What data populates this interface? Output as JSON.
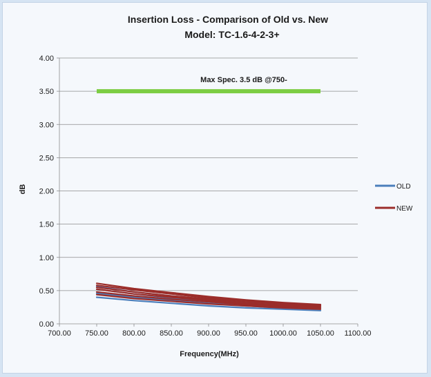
{
  "chart_data": {
    "type": "line",
    "title": "Insertion Loss - Comparison of Old vs. New",
    "subtitle": "Model:  TC-1.6-4-2-3+",
    "xlabel": "Frequency(MHz)",
    "ylabel": "dB",
    "xlim": [
      700,
      1100
    ],
    "ylim": [
      0,
      4
    ],
    "x_ticks": [
      "700.00",
      "750.00",
      "800.00",
      "850.00",
      "900.00",
      "950.00",
      "1000.00",
      "1050.00",
      "1100.00"
    ],
    "y_ticks": [
      "0.00",
      "0.50",
      "1.00",
      "1.50",
      "2.00",
      "2.50",
      "3.00",
      "3.50",
      "4.00"
    ],
    "x": [
      750,
      800,
      850,
      900,
      950,
      1000,
      1050
    ],
    "grid": "horizontal",
    "legend_position": "right",
    "legend": [
      {
        "label": "OLD",
        "color": "#4a7ebb"
      },
      {
        "label": "NEW",
        "color": "#9b2d2a"
      }
    ],
    "series": [
      {
        "group": "OLD",
        "color": "#4a7ebb",
        "values": [
          0.4,
          0.35,
          0.31,
          0.27,
          0.24,
          0.22,
          0.2
        ]
      },
      {
        "group": "OLD",
        "color": "#4a7ebb",
        "values": [
          0.46,
          0.4,
          0.35,
          0.31,
          0.27,
          0.24,
          0.22
        ]
      },
      {
        "group": "OLD",
        "color": "#4a7ebb",
        "values": [
          0.52,
          0.45,
          0.39,
          0.34,
          0.3,
          0.27,
          0.24
        ]
      },
      {
        "group": "OLD",
        "color": "#4a7ebb",
        "values": [
          0.56,
          0.48,
          0.42,
          0.37,
          0.32,
          0.28,
          0.26
        ]
      },
      {
        "group": "NEW",
        "color": "#9b2d2a",
        "values": [
          0.44,
          0.38,
          0.34,
          0.3,
          0.27,
          0.24,
          0.22
        ]
      },
      {
        "group": "NEW",
        "color": "#9b2d2a",
        "values": [
          0.48,
          0.42,
          0.37,
          0.33,
          0.29,
          0.26,
          0.24
        ]
      },
      {
        "group": "NEW",
        "color": "#9b2d2a",
        "values": [
          0.52,
          0.45,
          0.4,
          0.35,
          0.31,
          0.28,
          0.26
        ]
      },
      {
        "group": "NEW",
        "color": "#9b2d2a",
        "values": [
          0.55,
          0.48,
          0.42,
          0.37,
          0.33,
          0.3,
          0.27
        ]
      },
      {
        "group": "NEW",
        "color": "#9b2d2a",
        "values": [
          0.58,
          0.51,
          0.45,
          0.39,
          0.35,
          0.31,
          0.28
        ]
      },
      {
        "group": "NEW",
        "color": "#9b2d2a",
        "values": [
          0.61,
          0.53,
          0.47,
          0.41,
          0.36,
          0.32,
          0.29
        ]
      }
    ],
    "spec_line": {
      "label": "Max Spec. 3.5 dB @750-",
      "value": 3.5,
      "x_range": [
        750,
        1050
      ],
      "color": "#7ccd43"
    }
  }
}
